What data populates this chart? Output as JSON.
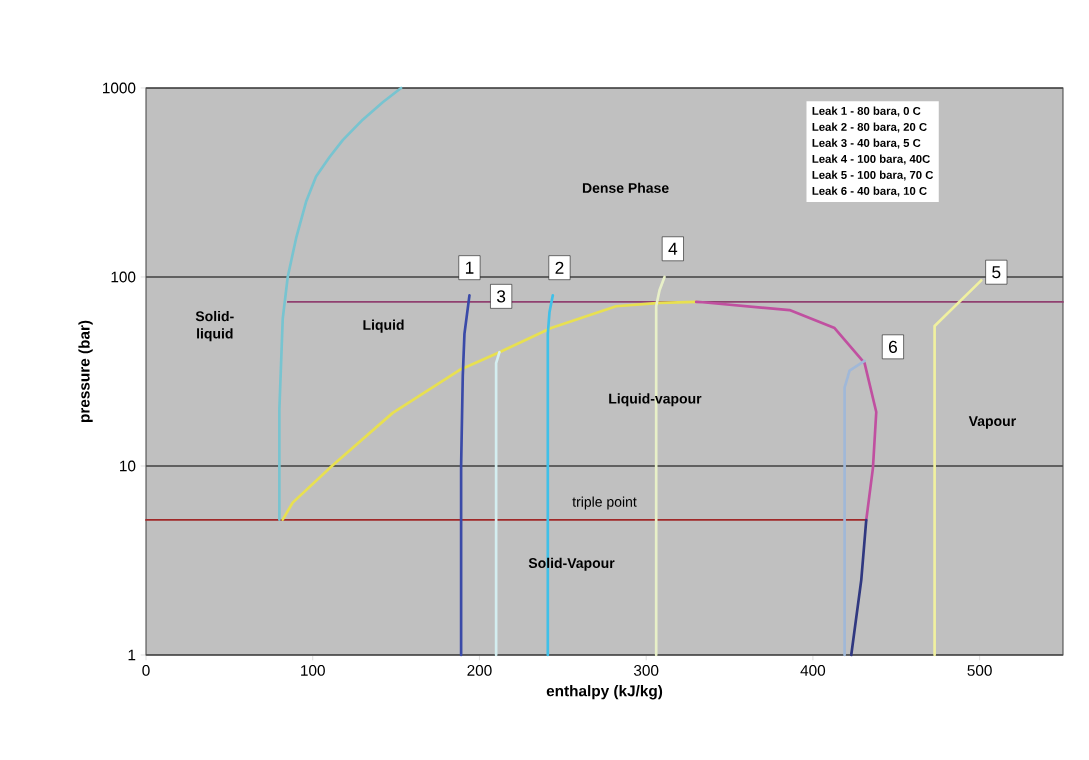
{
  "chart_data": {
    "type": "line",
    "xlabel": "enthalpy (kJ/kg)",
    "ylabel": "pressure (bar)",
    "xlim": [
      0,
      550
    ],
    "ylim": [
      1,
      1000
    ],
    "xticks": [
      0,
      100,
      200,
      300,
      400,
      500
    ],
    "yticks": [
      1,
      10,
      100,
      1000
    ],
    "log": "y",
    "grid": "y",
    "series": [
      {
        "color": "#a02828",
        "x": [
          0,
          432
        ],
        "values": [
          5.18,
          5.18
        ]
      },
      {
        "color": "#904070",
        "x": [
          85,
          550
        ],
        "values": [
          73.8,
          73.8
        ]
      },
      {
        "color": "#78c4d0",
        "x": [
          80,
          80,
          82,
          85,
          90,
          96,
          102,
          110,
          118,
          130,
          142,
          153
        ],
        "values": [
          5.2,
          20,
          60,
          100,
          160,
          250,
          340,
          430,
          530,
          680,
          840,
          1000
        ]
      },
      {
        "color": "#e8e050",
        "x": [
          82,
          88,
          112,
          148,
          188,
          212,
          243,
          282,
          308,
          330
        ],
        "values": [
          5.2,
          6.4,
          10.1,
          19.1,
          32.2,
          40,
          53.7,
          70,
          73,
          73.8
        ]
      },
      {
        "color": "#c050a0",
        "x": [
          330,
          334,
          386,
          413,
          431,
          438,
          436,
          432
        ],
        "values": [
          73.8,
          73.5,
          66.8,
          53.7,
          35,
          19.3,
          9.75,
          5.18
        ]
      },
      {
        "color": "#303880",
        "x": [
          432,
          429,
          423
        ],
        "values": [
          5.18,
          2.49,
          1
        ]
      },
      {
        "color": "#3a4aa8",
        "x": [
          189,
          189,
          190,
          191,
          194
        ],
        "values": [
          1,
          10,
          30,
          50,
          80
        ]
      },
      {
        "color": "#40c0e8",
        "x": [
          241,
          241,
          242,
          244
        ],
        "values": [
          1,
          50,
          65,
          80
        ]
      },
      {
        "color": "#d4eef0",
        "x": [
          210,
          210,
          212
        ],
        "values": [
          1,
          35,
          40
        ]
      },
      {
        "color": "#e8f0c8",
        "x": [
          306,
          306,
          308,
          311
        ],
        "values": [
          1,
          70,
          85,
          100
        ]
      },
      {
        "color": "#f0f0a0",
        "x": [
          473,
          473,
          501
        ],
        "values": [
          1,
          55,
          96
        ]
      },
      {
        "color": "#a0b8d8",
        "x": [
          419,
          419,
          422,
          431
        ],
        "values": [
          1,
          26,
          32,
          36
        ]
      }
    ],
    "annotations": [
      {
        "text": "1",
        "x": 194,
        "y": 112
      },
      {
        "text": "2",
        "x": 248,
        "y": 112
      },
      {
        "text": "3",
        "x": 213,
        "y": 79
      },
      {
        "text": "4",
        "x": 316,
        "y": 141
      },
      {
        "text": "5",
        "x": 510,
        "y": 106
      },
      {
        "text": "6",
        "x": 448,
        "y": 42.7
      },
      "triple point",
      "Dense Phase",
      "Solid-liquid",
      "Liquid",
      "Liquid-vapour",
      "Vapour",
      "Solid-Vapour",
      "Leak 1 - 80 bara,  0 C",
      "Leak 2 - 80 bara, 20 C",
      "Leak 3 - 40 bara,  5 C",
      "Leak 4 - 100 bara, 40C",
      "Leak 5 - 100 bara, 70 C",
      "Leak 6 - 40 bara,  10 C"
    ]
  }
}
